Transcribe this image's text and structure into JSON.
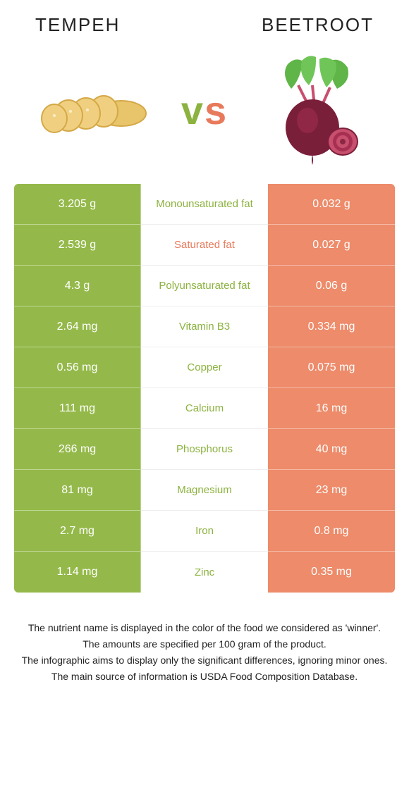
{
  "header": {
    "left_title": "Tempeh",
    "right_title": "Beetroot"
  },
  "vs": {
    "v": "v",
    "s": "s"
  },
  "colors": {
    "left_bg": "#94b94a",
    "right_bg": "#ed8b6a",
    "left_text": "#8cb23f",
    "right_text": "#e77a5a",
    "tempeh_fill": "#e8c56a",
    "tempeh_edge": "#d4a847",
    "beet_body": "#7a1f3a",
    "beet_highlight": "#a73052",
    "beet_leaf": "#5fb548",
    "beet_stem": "#c94f6e"
  },
  "rows": [
    {
      "nutrient": "Monounsaturated fat",
      "left": "3.205 g",
      "right": "0.032 g",
      "winner": "left"
    },
    {
      "nutrient": "Saturated fat",
      "left": "2.539 g",
      "right": "0.027 g",
      "winner": "right"
    },
    {
      "nutrient": "Polyunsaturated fat",
      "left": "4.3 g",
      "right": "0.06 g",
      "winner": "left"
    },
    {
      "nutrient": "Vitamin B3",
      "left": "2.64 mg",
      "right": "0.334 mg",
      "winner": "left"
    },
    {
      "nutrient": "Copper",
      "left": "0.56 mg",
      "right": "0.075 mg",
      "winner": "left"
    },
    {
      "nutrient": "Calcium",
      "left": "111 mg",
      "right": "16 mg",
      "winner": "left"
    },
    {
      "nutrient": "Phosphorus",
      "left": "266 mg",
      "right": "40 mg",
      "winner": "left"
    },
    {
      "nutrient": "Magnesium",
      "left": "81 mg",
      "right": "23 mg",
      "winner": "left"
    },
    {
      "nutrient": "Iron",
      "left": "2.7 mg",
      "right": "0.8 mg",
      "winner": "left"
    },
    {
      "nutrient": "Zinc",
      "left": "1.14 mg",
      "right": "0.35 mg",
      "winner": "left"
    }
  ],
  "footnotes": [
    "The nutrient name is displayed in the color of the food we considered as 'winner'.",
    "The amounts are specified per 100 gram of the product.",
    "The infographic aims to display only the significant differences, ignoring minor ones.",
    "The main source of information is USDA Food Composition Database."
  ]
}
